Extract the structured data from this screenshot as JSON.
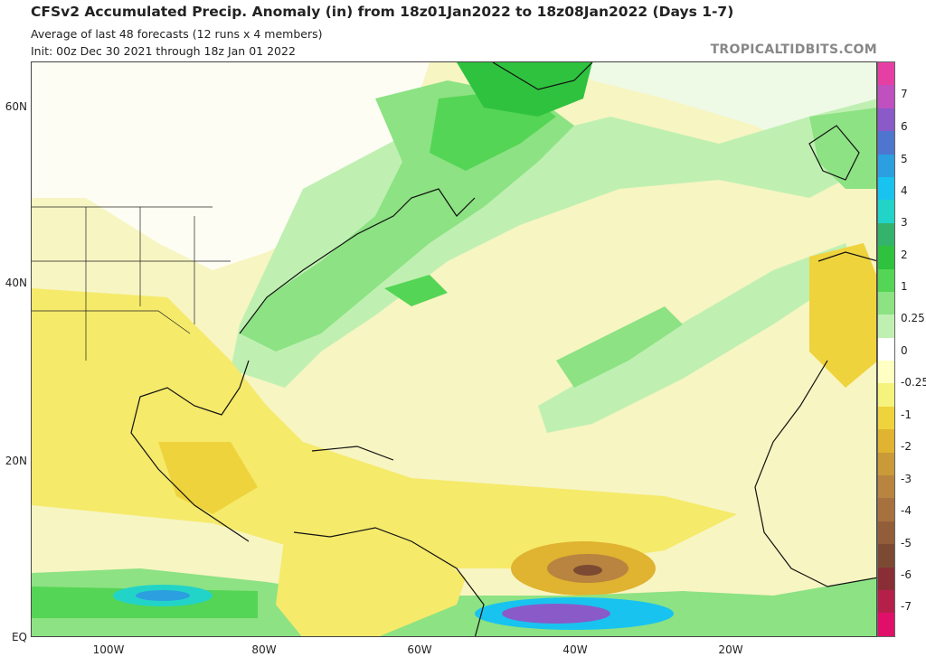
{
  "header": {
    "title": "CFSv2 Accumulated Precip. Anomaly (in) from 18z01Jan2022 to 18z08Jan2022 (Days 1-7)",
    "subtitle": "Average of last 48 forecasts (12 runs x 4 members)",
    "init": "Init: 00z Dec 30 2021 through 18z Jan 01 2022",
    "brand": "TROPICALTIDBITS.COM"
  },
  "axes": {
    "lat_labels": [
      "60N",
      "40N",
      "20N",
      "EQ"
    ],
    "lon_labels": [
      "100W",
      "80W",
      "60W",
      "40W",
      "20W"
    ]
  },
  "colorbar": {
    "labels": [
      "7",
      "6",
      "5",
      "4",
      "3",
      "2",
      "1",
      "0.25",
      "0",
      "-0.25",
      "-1",
      "-2",
      "-3",
      "-4",
      "-5",
      "-6",
      "-7"
    ],
    "colors": [
      "#e63fa4",
      "#c04fc0",
      "#8a5ac8",
      "#4f76cf",
      "#2b9fe0",
      "#18c3ef",
      "#22d4c8",
      "#33b36b",
      "#2fc23f",
      "#55d555",
      "#8de283",
      "#bff0b2",
      "#ffffff",
      "#ffffc4",
      "#f5f27d",
      "#efd33c",
      "#e0b330",
      "#c99a37",
      "#b8843f",
      "#a7713f",
      "#925e3a",
      "#7c4a33",
      "#8a2e36",
      "#b4204a",
      "#e0106a"
    ]
  },
  "map_legend": {
    "land_color": "#f5f5cf",
    "wet_color": "#55d555",
    "dry_color": "#efd33c"
  }
}
